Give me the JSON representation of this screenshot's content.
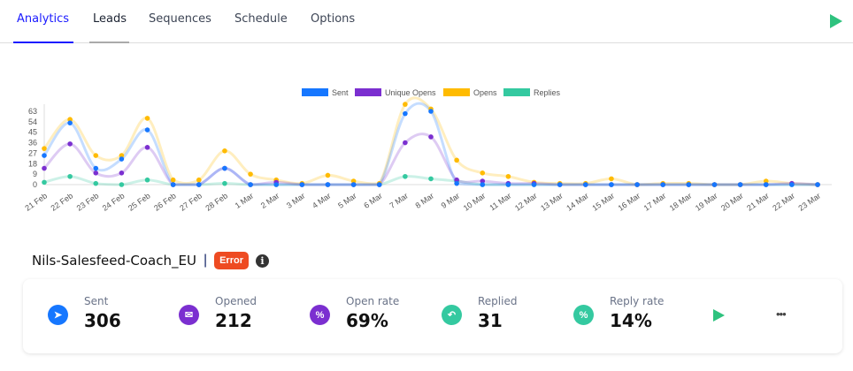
{
  "tabs": [
    {
      "label": "Analytics",
      "active": true
    },
    {
      "label": "Leads"
    },
    {
      "label": "Sequences"
    },
    {
      "label": "Schedule"
    },
    {
      "label": "Options"
    }
  ],
  "top_action": "play-icon",
  "chart_data": {
    "type": "line",
    "smooth": true,
    "legend_position": "top",
    "x": [
      "21 Feb",
      "22 Feb",
      "23 Feb",
      "24 Feb",
      "25 Feb",
      "26 Feb",
      "27 Feb",
      "28 Feb",
      "1 Mar",
      "2 Mar",
      "3 Mar",
      "4 Mar",
      "5 Mar",
      "6 Mar",
      "7 Mar",
      "8 Mar",
      "9 Mar",
      "10 Mar",
      "11 Mar",
      "12 Mar",
      "13 Mar",
      "14 Mar",
      "15 Mar",
      "16 Mar",
      "17 Mar",
      "18 Mar",
      "19 Mar",
      "20 Mar",
      "21 Mar",
      "22 Mar",
      "23 Mar"
    ],
    "y_ticks": [
      0,
      9,
      18,
      27,
      36,
      45,
      54,
      63
    ],
    "ylim": [
      0,
      70
    ],
    "series": [
      {
        "name": "Sent",
        "color": "#1677ff",
        "values": [
          25,
          53,
          14,
          22,
          47,
          0,
          0,
          14,
          0,
          0,
          0,
          0,
          0,
          0,
          61,
          63,
          1,
          0,
          0,
          0,
          0,
          0,
          0,
          0,
          0,
          0,
          0,
          0,
          0,
          0,
          0
        ]
      },
      {
        "name": "Unique Opens",
        "color": "#7b2fd0",
        "values": [
          14,
          35,
          10,
          10,
          32,
          0,
          0,
          14,
          0,
          2,
          0,
          0,
          0,
          0,
          36,
          41,
          4,
          3,
          1,
          1,
          0,
          0,
          0,
          0,
          0,
          0,
          0,
          0,
          0,
          1,
          0
        ]
      },
      {
        "name": "Opens",
        "color": "#ffbb00",
        "values": [
          31,
          56,
          25,
          25,
          57,
          4,
          4,
          29,
          9,
          4,
          1,
          8,
          3,
          1,
          69,
          65,
          21,
          10,
          7,
          2,
          1,
          1,
          5,
          0,
          1,
          1,
          0,
          0,
          3,
          1,
          0
        ]
      },
      {
        "name": "Replies",
        "color": "#34c9a0",
        "values": [
          2,
          7,
          1,
          0,
          4,
          0,
          0,
          1,
          0,
          0,
          0,
          0,
          0,
          0,
          7,
          5,
          3,
          0,
          0,
          0,
          0,
          0,
          0,
          0,
          0,
          0,
          0,
          0,
          0,
          0,
          0
        ]
      }
    ]
  },
  "campaign": {
    "name": "Nils-Salesfeed-Coach_EU",
    "separator": "|",
    "status": "Error",
    "status_color": "#ee4b22"
  },
  "stats": [
    {
      "label": "Sent",
      "value": "306",
      "icon": "paper-plane-icon",
      "color": "#1677ff"
    },
    {
      "label": "Opened",
      "value": "212",
      "icon": "open-envelope-icon",
      "color": "#7b2fd0"
    },
    {
      "label": "Open rate",
      "value": "69%",
      "icon": "percent-icon",
      "color": "#7b2fd0"
    },
    {
      "label": "Replied",
      "value": "31",
      "icon": "reply-icon",
      "color": "#34c9a0"
    },
    {
      "label": "Reply rate",
      "value": "14%",
      "icon": "percent-icon",
      "color": "#34c9a0"
    }
  ],
  "more_label": "•••"
}
